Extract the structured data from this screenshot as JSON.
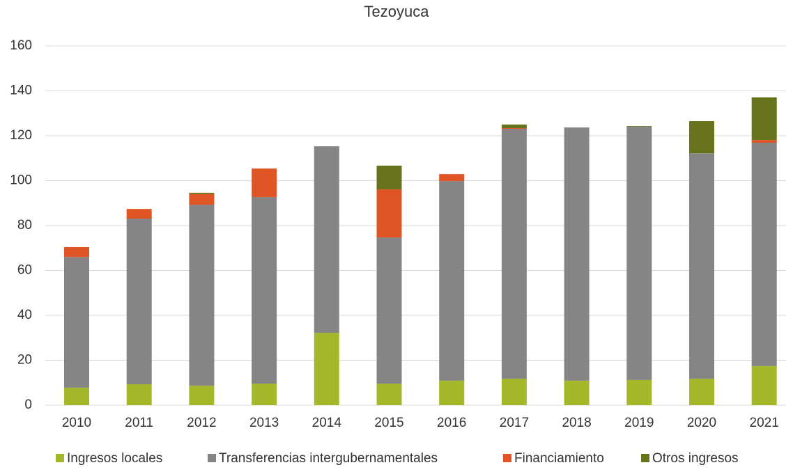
{
  "chart_data": {
    "type": "bar",
    "stacked": true,
    "title": "Tezoyuca",
    "categories": [
      "2010",
      "2011",
      "2012",
      "2013",
      "2014",
      "2015",
      "2016",
      "2017",
      "2018",
      "2019",
      "2020",
      "2021"
    ],
    "series": [
      {
        "name": "Ingresos locales",
        "color": "#a5b82a",
        "values": [
          7.8,
          9.3,
          8.7,
          9.6,
          32.2,
          9.6,
          10.9,
          11.8,
          10.9,
          11.2,
          11.8,
          17.4
        ]
      },
      {
        "name": "Transferencias intergubernamentales",
        "color": "#858585",
        "values": [
          58.2,
          73.8,
          80.6,
          83.1,
          83.1,
          65.1,
          88.9,
          111.3,
          112.8,
          112.8,
          100.4,
          99.5
        ]
      },
      {
        "name": "Financiamiento",
        "color": "#e05425",
        "values": [
          4.4,
          4.3,
          4.7,
          12.7,
          0,
          21.4,
          3.1,
          0.3,
          0,
          0,
          0,
          1.2
        ]
      },
      {
        "name": "Otros ingresos",
        "color": "#66731a",
        "values": [
          0,
          0,
          0.6,
          0,
          0,
          10.6,
          0,
          1.6,
          0,
          0.3,
          14.3,
          19.0
        ]
      }
    ],
    "ylim": [
      0,
      160
    ],
    "yticks": [
      0,
      20,
      40,
      60,
      80,
      100,
      120,
      140,
      160
    ],
    "grid": true,
    "legend": "bottom"
  }
}
